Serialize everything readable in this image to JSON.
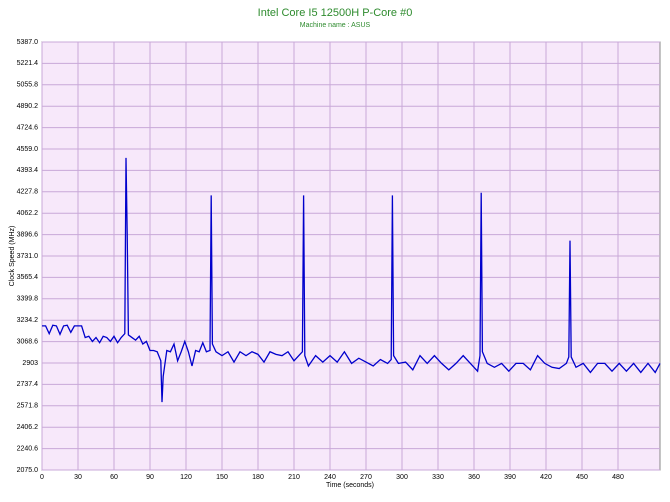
{
  "chart_data": {
    "type": "line",
    "title": "Intel Core I5 12500H P-Core #0",
    "subtitle": "Machine name : ASUS",
    "x_label": "Time (seconds)",
    "y_label": "Clock Speed (MHz)",
    "x": [
      0,
      3,
      6,
      9,
      12,
      15,
      18,
      21,
      24,
      27,
      30,
      33,
      36,
      39,
      42,
      45,
      48,
      51,
      54,
      57,
      60,
      63,
      66,
      69,
      70,
      71,
      72,
      75,
      78,
      81,
      84,
      87,
      90,
      93,
      96,
      99,
      100,
      101,
      104,
      107,
      110,
      113,
      116,
      119,
      122,
      125,
      128,
      131,
      134,
      137,
      140,
      141,
      142,
      145,
      150,
      155,
      160,
      165,
      170,
      175,
      180,
      185,
      190,
      195,
      200,
      205,
      210,
      215,
      217,
      218,
      219,
      222,
      228,
      234,
      240,
      246,
      252,
      258,
      264,
      270,
      276,
      282,
      288,
      291,
      292,
      293,
      297,
      303,
      309,
      315,
      321,
      327,
      333,
      339,
      345,
      351,
      357,
      363,
      365,
      366,
      367,
      371,
      377,
      383,
      389,
      395,
      401,
      407,
      413,
      419,
      425,
      431,
      437,
      439,
      440,
      441,
      445,
      451,
      457,
      463,
      469,
      475,
      481,
      487,
      493,
      499,
      505,
      511,
      515
    ],
    "series": [
      {
        "name": "P-Core #0",
        "color": "#0000cc",
        "values": [
          3190,
          3190,
          3130,
          3195,
          3190,
          3125,
          3190,
          3195,
          3140,
          3190,
          3190,
          3190,
          3100,
          3110,
          3070,
          3100,
          3060,
          3110,
          3100,
          3070,
          3110,
          3060,
          3100,
          3130,
          4490,
          3900,
          3120,
          3100,
          3080,
          3110,
          3050,
          3070,
          3000,
          3000,
          2990,
          2920,
          2600,
          2800,
          3000,
          2990,
          3050,
          2920,
          2990,
          3070,
          2990,
          2880,
          3000,
          2990,
          3060,
          2990,
          3000,
          4200,
          3050,
          2990,
          2960,
          2990,
          2910,
          2990,
          2960,
          2990,
          2970,
          2910,
          2990,
          2970,
          2960,
          2990,
          2920,
          2970,
          2990,
          4200,
          2960,
          2880,
          2960,
          2910,
          2960,
          2910,
          2990,
          2900,
          2940,
          2910,
          2880,
          2930,
          2900,
          2930,
          4200,
          2960,
          2900,
          2910,
          2850,
          2960,
          2900,
          2960,
          2900,
          2850,
          2900,
          2960,
          2900,
          2840,
          2960,
          4220,
          2990,
          2900,
          2870,
          2900,
          2840,
          2900,
          2900,
          2850,
          2960,
          2900,
          2870,
          2860,
          2900,
          2950,
          3850,
          2950,
          2870,
          2900,
          2830,
          2900,
          2900,
          2840,
          2900,
          2840,
          2900,
          2830,
          2900,
          2830,
          2900
        ]
      }
    ],
    "xlim": [
      0,
      515
    ],
    "xticks": [
      0,
      30,
      60,
      90,
      120,
      150,
      180,
      210,
      240,
      270,
      300,
      330,
      360,
      390,
      420,
      450,
      480
    ],
    "ylim": [
      2075,
      5387
    ],
    "yticks": [
      {
        "value": 2075,
        "label": "2075.0"
      },
      2240.6,
      2406.2,
      2571.8,
      2737.4,
      2903,
      {
        "value": 3068.6,
        "label": "3068.6"
      },
      3234.2,
      3399.8,
      3565.4,
      {
        "value": 3731,
        "label": "3731.0"
      },
      3896.6,
      4062.2,
      4227.8,
      4393.4,
      {
        "value": 4559,
        "label": "4559.0"
      },
      4724.6,
      4890.2,
      5055.8,
      5221.4,
      {
        "value": 5387,
        "label": "5387.0"
      }
    ],
    "grid": true
  }
}
